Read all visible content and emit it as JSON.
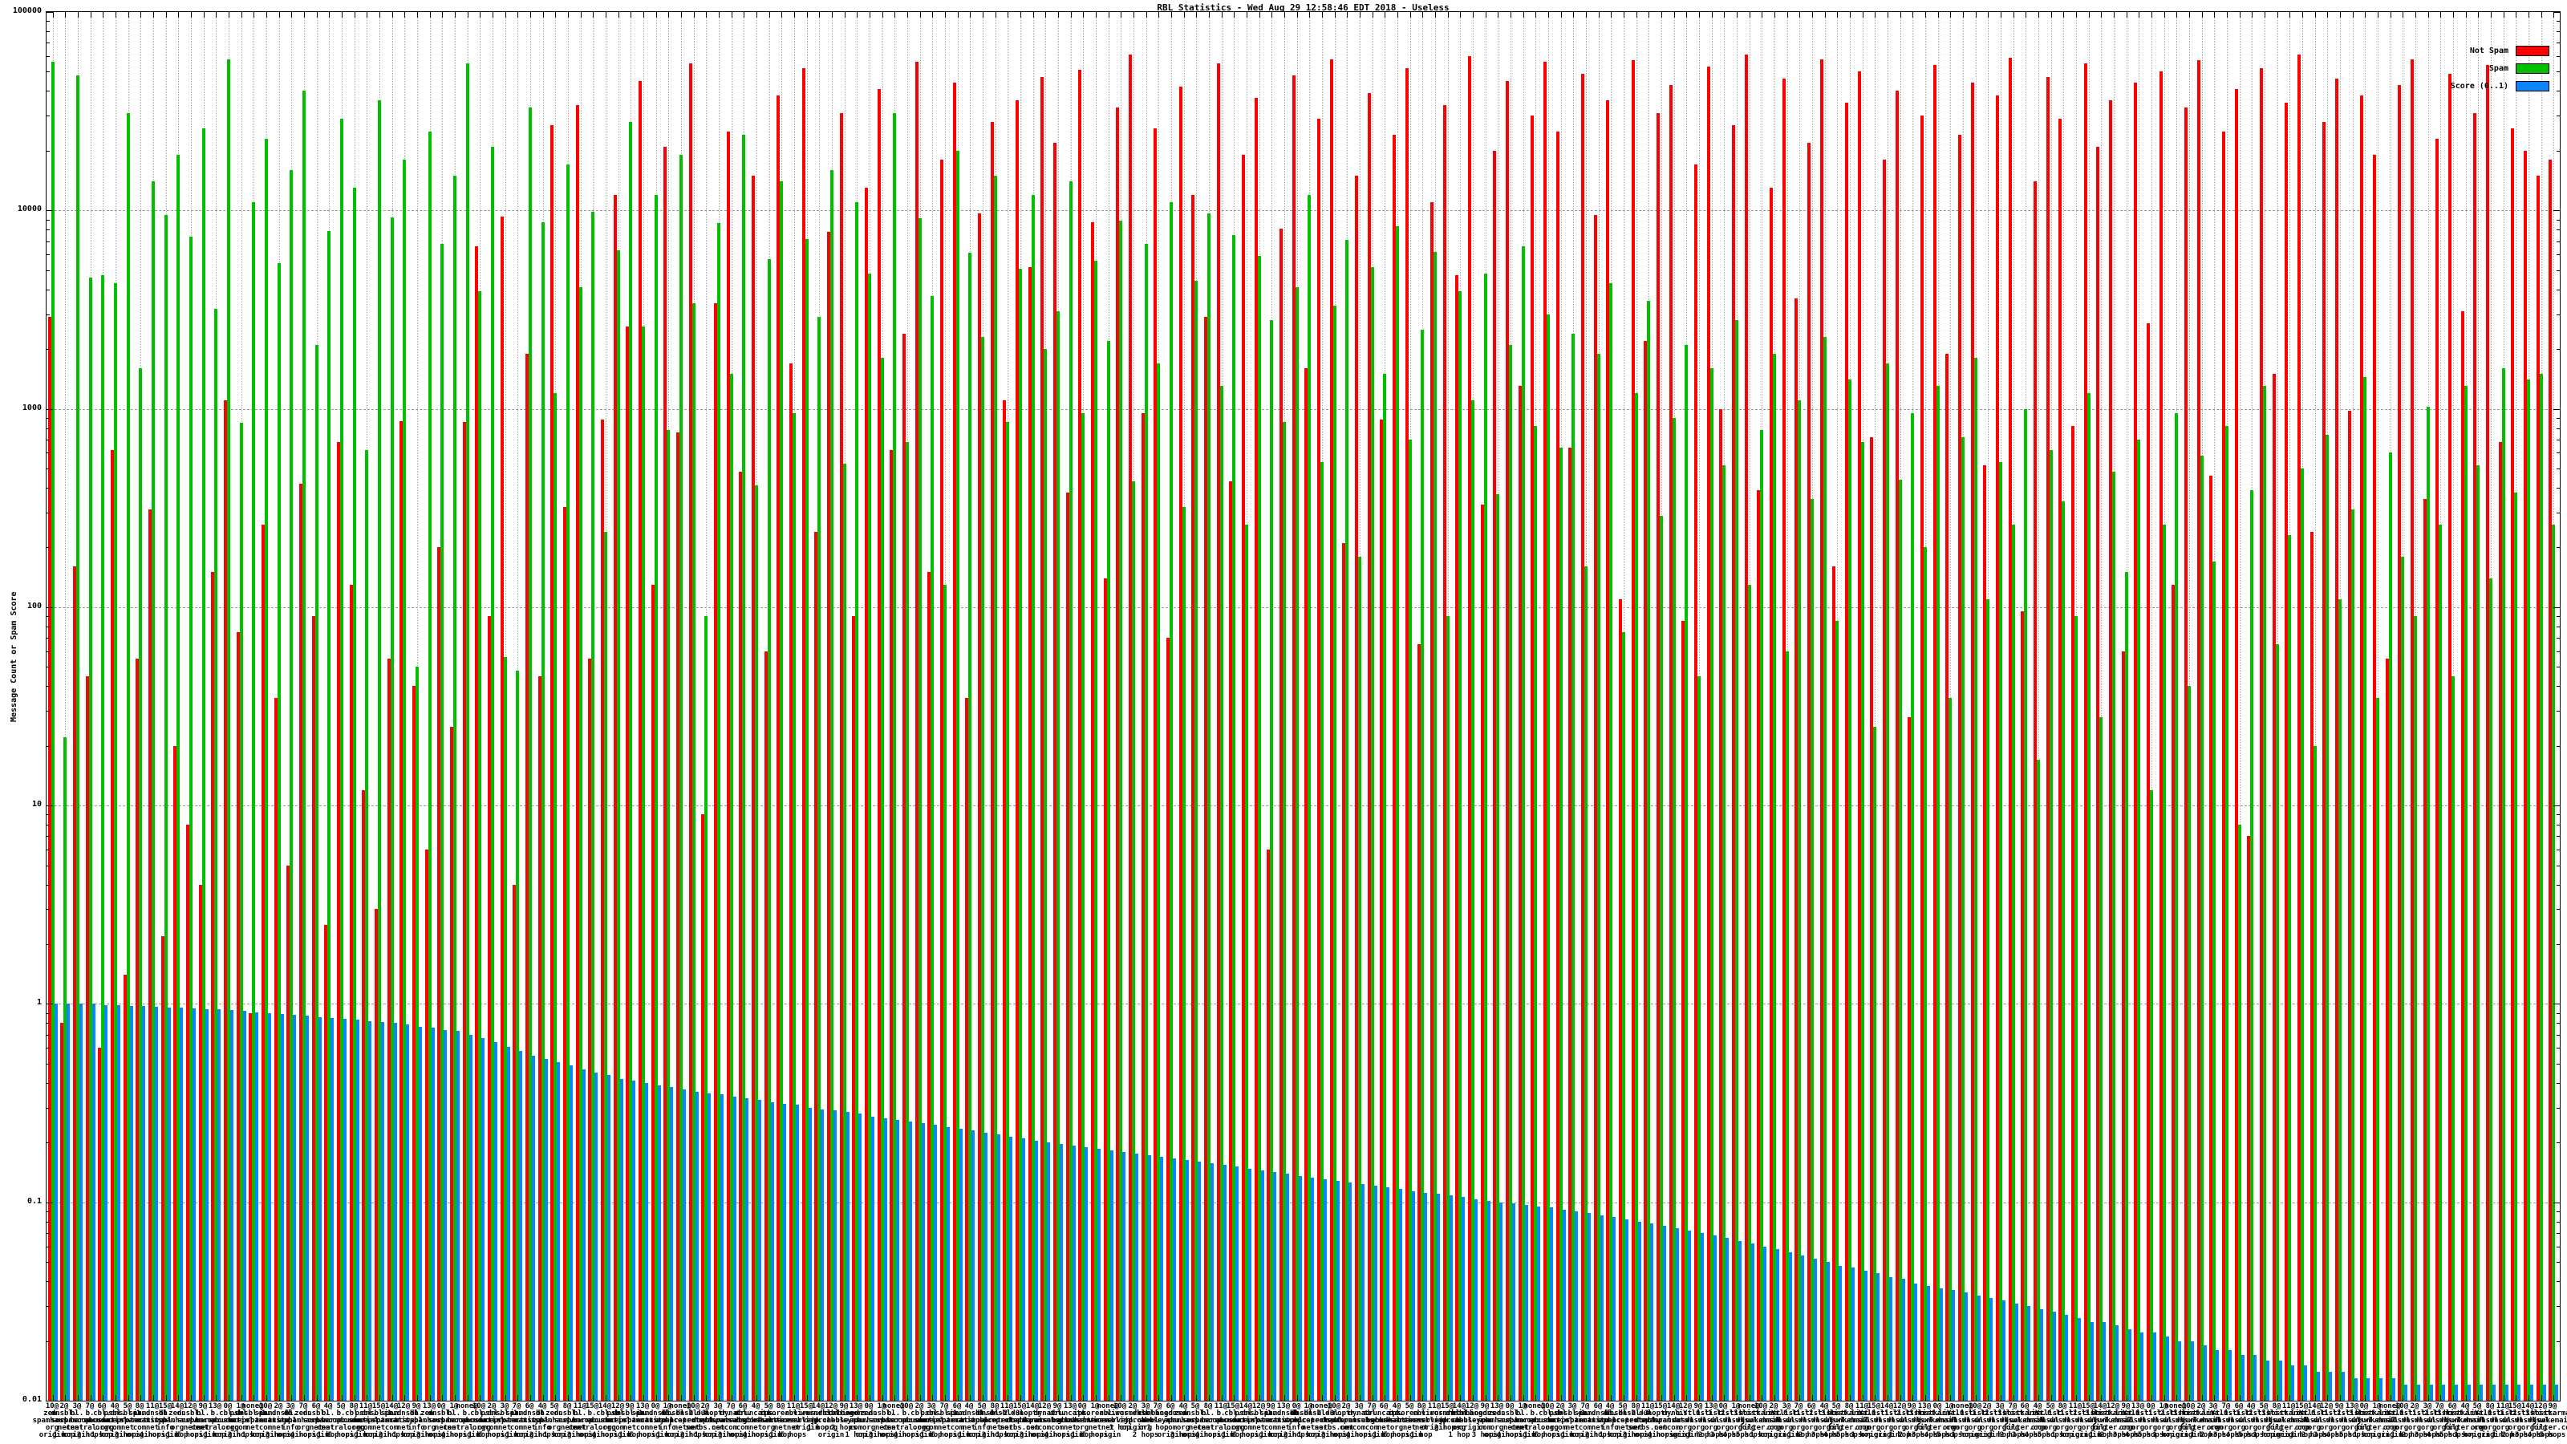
{
  "page": {
    "title": "RBL Statistics - Wed Aug 29 12:58:46 EDT 2018 - Useless"
  },
  "chart_data": {
    "type": "bar",
    "title": "RBL Statistics - Wed Aug 29 12:58:46 EDT 2018 - Useless",
    "xlabel": "",
    "ylabel": "Message Count or Spam Score",
    "y_scale": "log",
    "ylim": [
      0.01,
      100000
    ],
    "y_ticks": [
      "100000",
      "10000",
      "1000",
      "100",
      "10",
      "1",
      "0.1",
      "0.01"
    ],
    "grid": true,
    "legend_position": "top-right",
    "background": "#ffffff",
    "grid_color": "#9a9a9a",
    "categories": [
      "10@\nzen.\nspamhaus.\norg\norigin",
      "2@\ndnsbl.\nsorbs.\nnet\n1 hop",
      "3@\nbl.\nspamcop.\nnet\norigin",
      "7@\nb.\nbarracuda\ncentral.org\n2 hops",
      "6@\ncbl.\nabuseat.\norg\n1 hop",
      "4@\npsbl.\nsurriel.\ncom\norigin",
      "5@\ndnsbl-1.\nuceprotect.\nnet\n3 hops",
      "8@\nspam.\nspamrats.\ncom\norigin",
      "11@\nix.dnsbl.\nmanitu.\nnet\n4 hops",
      "15@\ndb.\nwpbl.\ninfo\norigin",
      "14@\nzen.\nspamhaus.\norg\n1 hop",
      "12@\ndnsbl.\nsorbs.\nnet\n5 hops",
      "9@\nbl.\nspamcop.\nnet\norigin",
      "13@\nb.\nbarracuda\ncentral.org\n1 hop",
      "0@\ncbl.\nabuseat.\norg\norigin",
      "1@\npsbl.\nsurriel.\ncom\n2 hops",
      "none@\ndnsbl-1.\nuceprotect.\nnet\n1 hop",
      "10@\nspam.\nspamrats.\ncom\norigin",
      "2@\nix.dnsbl.\nmanitu.\nnet\n3 hops",
      "3@\ndb.\nwpbl.\ninfo\norigin",
      "7@\nzen.\nspamhaus.\norg\n4 hops",
      "6@\ndnsbl.\nsorbs.\nnet\norigin",
      "4@\nbl.\nspamcop.\nnet\n1 hop",
      "5@\nb.\nbarracuda\ncentral.org\n5 hops",
      "8@\ncbl.\nabuseat.\norg\norigin",
      "11@\npsbl.\nsurriel.\ncom\n1 hop",
      "15@\ndnsbl-1.\nuceprotect.\nnet\norigin",
      "14@\nspam.\nspamrats.\ncom\n2 hops",
      "12@\nix.dnsbl.\nmanitu.\nnet\n1 hop",
      "9@\ndb.\nwpbl.\ninfo\norigin",
      "13@\nzen.\nspamhaus.\norg\n3 hops",
      "0@\ndnsbl.\nsorbs.\nnet\norigin",
      "1@\nbl.\nspamcop.\nnet\n4 hops",
      "none@\nb.\nbarracuda\ncentral.org\norigin",
      "10@\ncbl.\nabuseat.\norg\n1 hop",
      "2@\npsbl.\nsurriel.\ncom\n5 hops",
      "3@\ndnsbl-1.\nuceprotect.\nnet\norigin",
      "7@\nspam.\nspamrats.\ncom\n1 hop",
      "6@\nix.dnsbl.\nmanitu.\nnet\norigin",
      "4@\ndb.\nwpbl.\ninfo\n2 hops",
      "5@\nzen.\nspamhaus.\norg\n1 hop",
      "8@\ndnsbl.\nsorbs.\nnet\norigin",
      "11@\nbl.\nspamcop.\nnet\n3 hops",
      "15@\nb.\nbarracuda\ncentral.org\norigin",
      "14@\ncbl.\nabuseat.\norg\n4 hops",
      "12@\npsbl.\nsurriel.\ncom\norigin",
      "9@\ndnsbl-1.\nuceprotect.\nnet\n1 hop",
      "13@\nspam.\nspamrats.\ncom\n5 hops",
      "0@\nix.dnsbl.\nmanitu.\nnet\norigin",
      "1@\ndb.\nwpbl.\ninfo\n1 hop",
      "none@\ndnsbl-2.\nuceprotect.\nnet\norigin",
      "10@\ndnsbl-3.\nuceprotect.\nnet\n2 hops",
      "2@\ndul.\ndnsbl.\nsorbs.net\n1 hop",
      "3@\nnoptr.\nspamrats.\ncom\norigin",
      "7@\ndyna.\nspamrats.\ncom\n3 hops",
      "6@\nubl.\nunsubscore.\ncom\norigin",
      "4@\ntruncate.\ngbudb.\nnet\n4 hops",
      "5@\nips.\nbackscatterer.\norg\norigin",
      "8@\nkorea.\nservices.\nnet\n1 hop",
      "11@\nrbl.\ninterserver.\nnet\n5 hops",
      "15@\nvirus.\nrbl.jp\norigin",
      "14@\nwormrbl.\nimp.ch\n1 hop",
      "12@\ndnsbl.\ndronebl.\norg\norigin",
      "9@\ncombined.\nabuse.ch\n2 hops",
      "13@\nbogons.\ncymru.\ncom\n1 hop",
      "0@\nzen.\nspamhaus.\norg\norigin",
      "1@\ndnsbl.\nsorbs.\nnet\n3 hops",
      "none@\nbl.\nspamcop.\nnet\norigin",
      "10@\nb.\nbarracuda\ncentral.org\n4 hops",
      "2@\ncbl.\nabuseat.\norg\norigin",
      "3@\npsbl.\nsurriel.\ncom\n1 hop",
      "7@\ndnsbl-1.\nuceprotect.\nnet\n5 hops",
      "6@\nspam.\nspamrats.\ncom\norigin",
      "4@\nix.dnsbl.\nmanitu.\nnet\n1 hop",
      "5@\ndb.\nwpbl.\ninfo\norigin",
      "8@\ndnsbl-2.\nuceprotect.\nnet\n2 hops",
      "11@\ndnsbl-3.\nuceprotect.\nnet\n1 hop",
      "15@\ndul.\ndnsbl.\nsorbs.net\norigin",
      "14@\nnoptr.\nspamrats.\ncom\n3 hops",
      "12@\ndyna.\nspamrats.\ncom\norigin",
      "9@\nubl.\nunsubscore.\ncom\n4 hops",
      "13@\ntruncate.\ngbudb.\nnet\norigin",
      "0@\nips.\nbackscatterer.\norg\n1 hop",
      "1@\nkorea.\nservices.\nnet\n5 hops",
      "none@\nrbl.\ninterserver.\nnet\norigin",
      "10@\nvirus.\nrbl.jp\n1 hop",
      "2@\nwormrbl.\nimp.ch\norigin",
      "3@\ndnsbl.\ndronebl.\norg\n2 hops",
      "7@\ncombined.\nabuse.ch\n1 hop",
      "6@\nbogons.\ncymru.\ncom\norigin",
      "4@\nzen.\nspamhaus.\norg\n3 hops",
      "5@\ndnsbl.\nsorbs.\nnet\norigin",
      "8@\nbl.\nspamcop.\nnet\n4 hops",
      "11@\nb.\nbarracuda\ncentral.org\norigin",
      "15@\ncbl.\nabuseat.\norg\n1 hop",
      "14@\npsbl.\nsurriel.\ncom\n5 hops",
      "12@\ndnsbl-1.\nuceprotect.\nnet\norigin",
      "9@\nspam.\nspamrats.\ncom\n1 hop",
      "13@\nix.dnsbl.\nmanitu.\nnet\norigin",
      "0@\ndb.\nwpbl.\ninfo\n2 hops",
      "1@\ndnsbl-2.\nuceprotect.\nnet\n1 hop",
      "none@\ndnsbl-3.\nuceprotect.\nnet\norigin",
      "10@\ndul.\ndnsbl.\nsorbs.net\n3 hops",
      "2@\nnoptr.\nspamrats.\ncom\norigin",
      "3@\ndyna.\nspamrats.\ncom\n4 hops",
      "7@\nubl.\nunsubscore.\ncom\norigin",
      "6@\ntruncate.\ngbudb.\nnet\n1 hop",
      "4@\nips.\nbackscatterer.\norg\n5 hops",
      "5@\nkorea.\nservices.\nnet\norigin",
      "8@\nrbl.\ninterserver.\nnet\n1 hop",
      "11@\nvirus.\nrbl.jp\norigin",
      "15@\nwormrbl.\nimp.ch\n2 hops",
      "14@\ndnsbl.\ndronebl.\norg\n1 hop",
      "12@\ncombined.\nabuse.ch\norigin",
      "9@\nbogons.\ncymru.\ncom\n3 hops",
      "13@\nzen.\nspamhaus.\norg\norigin",
      "0@\ndnsbl.\nsorbs.\nnet\n4 hops",
      "1@\nbl.\nspamcop.\nnet\norigin",
      "none@\nb.\nbarracuda\ncentral.org\n1 hop",
      "10@\ncbl.\nabuseat.\norg\n5 hops",
      "2@\npsbl.\nsurriel.\ncom\norigin",
      "3@\ndnsbl-1.\nuceprotect.\nnet\n1 hop",
      "7@\nspam.\nspamrats.\ncom\norigin",
      "6@\nix.dnsbl.\nmanitu.\nnet\n2 hops",
      "4@\ndb.\nwpbl.\ninfo\n1 hop",
      "5@\ndnsbl-2.\nuceprotect.\nnet\norigin",
      "8@\ndnsbl-3.\nuceprotect.\nnet\n3 hops",
      "11@\ndul.\ndnsbl.\nsorbs.net\norigin",
      "15@\nnoptr.\nspamrats.\ncom\n4 hops",
      "14@\ndyna.\nspamrats.\ncom\norigin",
      "12@\nlist.\ndnswl.\norg\norigin",
      "9@\nY.list.\ndnswl.\norg\n1 hop",
      "13@\n0.list.\ndnswl.\norg\n2 hops",
      "0@\n1.list.\ndnswl.\norg\n3 hops",
      "1@\n2.list.\ndnswl.\norg\n4 hops",
      "none@\n3.list.\ndnswl.\norg\n5 hops",
      "10@\nhostkarma.\njunkemail\nfilter.com\n1 hop",
      "2@\nlist.\ndnswl.\norg\norigin",
      "3@\nY.list.\ndnswl.\norg\norigin",
      "7@\n0.list.\ndnswl.\norg\n1 hop",
      "6@\n1.list.\ndnswl.\norg\n2 hops",
      "4@\n2.list.\ndnswl.\norg\n3 hops",
      "5@\n3.list.\ndnswl.\norg\n4 hops",
      "8@\nhostkarma.\njunkemail\nfilter.com\n5 hops",
      "11@\nlist.\ndnswl.\norg\n1 hop",
      "15@\nY.list.\ndnswl.\norg\norigin",
      "14@\n0.list.\ndnswl.\norg\norigin",
      "12@\n1.list.\ndnswl.\norg\n1 hop",
      "9@\n2.list.\ndnswl.\norg\n2 hops",
      "13@\n3.list.\ndnswl.\norg\n3 hops",
      "0@\nhostkarma.\njunkemail\nfilter.com\n4 hops",
      "1@\nlist.\ndnswl.\norg\n5 hops",
      "none@\nY.list.\ndnswl.\norg\n1 hop",
      "10@\n0.list.\ndnswl.\norg\norigin",
      "2@\n1.list.\ndnswl.\norg\norigin",
      "3@\n2.list.\ndnswl.\norg\n1 hop",
      "7@\n3.list.\ndnswl.\norg\n2 hops",
      "6@\nhostkarma.\njunkemail\nfilter.com\n3 hops",
      "4@\nlist.\ndnswl.\norg\n4 hops",
      "5@\nY.list.\ndnswl.\norg\n5 hops",
      "8@\n0.list.\ndnswl.\norg\n1 hop",
      "11@\n1.list.\ndnswl.\norg\norigin",
      "15@\n2.list.\ndnswl.\norg\norigin",
      "14@\n3.list.\ndnswl.\norg\n1 hop",
      "12@\nhostkarma.\njunkemail\nfilter.com\n2 hops",
      "9@\nlist.\ndnswl.\norg\n3 hops",
      "13@\nY.list.\ndnswl.\norg\n4 hops",
      "0@\n0.list.\ndnswl.\norg\n5 hops",
      "1@\n1.list.\ndnswl.\norg\n1 hop",
      "none@\n2.list.\ndnswl.\norg\norigin",
      "10@\n3.list.\ndnswl.\norg\norigin",
      "2@\nhostkarma.\njunkemail\nfilter.com\n1 hop",
      "3@\nlist.\ndnswl.\norg\n2 hops",
      "7@\nY.list.\ndnswl.\norg\n3 hops",
      "6@\n0.list.\ndnswl.\norg\n4 hops",
      "4@\n1.list.\ndnswl.\norg\n5 hops",
      "5@\n2.list.\ndnswl.\norg\n1 hop",
      "8@\n3.list.\ndnswl.\norg\norigin",
      "11@\nhostkarma.\njunkemail\nfilter.com\norigin",
      "15@\nlist.\ndnswl.\norg\n1 hop",
      "14@\nY.list.\ndnswl.\norg\n2 hops",
      "12@\n0.list.\ndnswl.\norg\n3 hops",
      "9@\n1.list.\ndnswl.\norg\n4 hops",
      "13@\n2.list.\ndnswl.\norg\n5 hops",
      "0@\n3.list.\ndnswl.\norg\n1 hop",
      "1@\nhostkarma.\njunkemail\nfilter.com\norigin",
      "none@\nlist.\ndnswl.\norg\norigin",
      "10@\nY.list.\ndnswl.\norg\n1 hop",
      "2@\n0.list.\ndnswl.\norg\n2 hops",
      "3@\n1.list.\ndnswl.\norg\n3 hops",
      "7@\n2.list.\ndnswl.\norg\n4 hops",
      "6@\n3.list.\ndnswl.\norg\n5 hops",
      "4@\nhostkarma.\njunkemail\nfilter.com\n1 hop",
      "5@\nlist.\ndnswl.\norg\norigin",
      "8@\nY.list.\ndnswl.\norg\norigin",
      "11@\n0.list.\ndnswl.\norg\n1 hop",
      "15@\n1.list.\ndnswl.\norg\n2 hops",
      "14@\n2.list.\ndnswl.\norg\n3 hops",
      "12@\n3.list.\ndnswl.\norg\n4 hops",
      "9@\nhostkarma.\njunkemail\nfilter.com\n5 hops"
    ],
    "series": [
      {
        "name": "Not Spam",
        "color": "#ff0000",
        "values": [
          2900,
          0.8,
          160,
          45,
          0.6,
          620,
          1.4,
          55,
          310,
          2.2,
          20,
          8,
          4,
          150,
          1100,
          75,
          0.9,
          260,
          35,
          5,
          420,
          90,
          2.5,
          680,
          130,
          12,
          3,
          55,
          870,
          40,
          6,
          200,
          25,
          860,
          6600,
          90,
          9300,
          4,
          1900,
          45,
          27000,
          320,
          34000,
          55,
          880,
          12000,
          2600,
          45000,
          130,
          21000,
          760,
          55000,
          9,
          3400,
          25000,
          480,
          15000,
          60,
          38000,
          1700,
          52000,
          240,
          7800,
          31000,
          90,
          13000,
          41000,
          620,
          2400,
          56000,
          150,
          18000,
          44000,
          35,
          9700,
          28000,
          1100,
          36000,
          5200,
          47000,
          22000,
          380,
          51000,
          8700,
          140,
          33000,
          61000,
          950,
          26000,
          70,
          42000,
          12000,
          2900,
          55000,
          430,
          19000,
          37000,
          6,
          8100,
          48000,
          1600,
          29000,
          58000,
          210,
          15000,
          39000,
          880,
          24000,
          52000,
          65,
          11000,
          34000,
          4700,
          60000,
          330,
          20000,
          45000,
          1300,
          30000,
          56000,
          25000,
          640,
          49000,
          9500,
          36000,
          110,
          57000,
          2200,
          31000,
          43000,
          85,
          17000,
          53000,
          1000,
          27000,
          61000,
          390,
          13000,
          46000,
          3600,
          22000,
          58000,
          160,
          35000,
          50000,
          720,
          18000,
          40000,
          28,
          30000,
          54000,
          1900,
          24000,
          44000,
          520,
          38000,
          59000,
          95,
          14000,
          47000,
          29000,
          820,
          55000,
          21000,
          36000,
          60,
          44000,
          2700,
          50000,
          130,
          33000,
          57000,
          460,
          25000,
          41000,
          7,
          52000,
          1500,
          35000,
          61000,
          240,
          28000,
          46000,
          980,
          38000,
          19000,
          55,
          43000,
          58000,
          350,
          23000,
          49000,
          3100,
          31000,
          54000,
          680,
          26000,
          20000,
          15000,
          18000
        ]
      },
      {
        "name": "Spam",
        "color": "#00c000",
        "values": [
          56000,
          22,
          48000,
          4600,
          4700,
          4300,
          31000,
          1600,
          14000,
          9500,
          19000,
          7400,
          26000,
          3200,
          58000,
          850,
          11000,
          23000,
          5400,
          16000,
          40000,
          2100,
          7900,
          29000,
          13000,
          620,
          36000,
          9200,
          18000,
          50,
          25000,
          6800,
          15000,
          55000,
          3900,
          21000,
          56,
          48,
          33000,
          8700,
          1200,
          17000,
          4100,
          9800,
          240,
          6300,
          28000,
          2600,
          12000,
          780,
          19000,
          3400,
          90,
          8600,
          1500,
          24000,
          410,
          5700,
          14000,
          950,
          7200,
          2900,
          16000,
          530,
          11000,
          4800,
          1800,
          31000,
          680,
          9100,
          3700,
          130,
          20000,
          6100,
          2300,
          15000,
          860,
          5100,
          12000,
          2000,
          3100,
          14000,
          950,
          5600,
          2200,
          8900,
          430,
          6800,
          1700,
          11000,
          320,
          4400,
          9700,
          1300,
          7500,
          260,
          5900,
          2800,
          860,
          4100,
          12000,
          540,
          3300,
          7100,
          180,
          5200,
          1500,
          8300,
          700,
          2500,
          6200,
          90,
          3900,
          1100,
          4800,
          370,
          2100,
          6600,
          820,
          3000,
          640,
          2400,
          160,
          1900,
          4300,
          75,
          1200,
          3500,
          290,
          900,
          2100,
          45,
          1600,
          520,
          2800,
          130,
          780,
          1900,
          60,
          1100,
          350,
          2300,
          85,
          1400,
          680,
          25,
          1700,
          440,
          950,
          200,
          1300,
          35,
          720,
          1800,
          110,
          540,
          260,
          1000,
          17,
          620,
          340,
          90,
          1200,
          28,
          480,
          150,
          700,
          12,
          260,
          950,
          40,
          580,
          170,
          820,
          8,
          390,
          1300,
          65,
          230,
          500,
          20,
          740,
          110,
          310,
          1450,
          35,
          600,
          180,
          90,
          1020,
          260,
          45,
          1300,
          520,
          140,
          1600,
          380,
          1400,
          1500,
          260
        ]
      },
      {
        "name": "Score (0..1)",
        "color": "#0a85ff",
        "values": [
          1.0,
          1.0,
          1.0,
          1.0,
          0.99,
          0.99,
          0.98,
          0.98,
          0.97,
          0.96,
          0.96,
          0.95,
          0.94,
          0.94,
          0.93,
          0.92,
          0.91,
          0.9,
          0.89,
          0.88,
          0.87,
          0.86,
          0.85,
          0.84,
          0.83,
          0.82,
          0.81,
          0.8,
          0.79,
          0.77,
          0.76,
          0.74,
          0.73,
          0.7,
          0.67,
          0.64,
          0.61,
          0.58,
          0.55,
          0.53,
          0.51,
          0.49,
          0.47,
          0.45,
          0.44,
          0.42,
          0.41,
          0.4,
          0.39,
          0.38,
          0.37,
          0.36,
          0.355,
          0.35,
          0.34,
          0.335,
          0.33,
          0.32,
          0.315,
          0.31,
          0.3,
          0.295,
          0.29,
          0.285,
          0.28,
          0.27,
          0.265,
          0.26,
          0.255,
          0.25,
          0.245,
          0.24,
          0.235,
          0.23,
          0.225,
          0.22,
          0.215,
          0.21,
          0.205,
          0.2,
          0.197,
          0.193,
          0.19,
          0.186,
          0.183,
          0.18,
          0.176,
          0.173,
          0.17,
          0.167,
          0.163,
          0.16,
          0.157,
          0.154,
          0.151,
          0.148,
          0.145,
          0.142,
          0.139,
          0.136,
          0.133,
          0.131,
          0.128,
          0.126,
          0.123,
          0.121,
          0.119,
          0.117,
          0.114,
          0.112,
          0.11,
          0.108,
          0.106,
          0.104,
          0.102,
          0.1,
          0.099,
          0.097,
          0.095,
          0.094,
          0.092,
          0.09,
          0.088,
          0.086,
          0.084,
          0.082,
          0.08,
          0.078,
          0.076,
          0.074,
          0.072,
          0.07,
          0.068,
          0.066,
          0.064,
          0.062,
          0.06,
          0.058,
          0.056,
          0.054,
          0.052,
          0.05,
          0.048,
          0.047,
          0.045,
          0.044,
          0.042,
          0.041,
          0.039,
          0.038,
          0.037,
          0.036,
          0.035,
          0.034,
          0.033,
          0.032,
          0.031,
          0.03,
          0.029,
          0.028,
          0.027,
          0.026,
          0.025,
          0.025,
          0.024,
          0.023,
          0.022,
          0.022,
          0.021,
          0.02,
          0.02,
          0.019,
          0.018,
          0.018,
          0.017,
          0.017,
          0.016,
          0.016,
          0.015,
          0.015,
          0.014,
          0.014,
          0.014,
          0.013,
          0.013,
          0.013,
          0.013,
          0.012,
          0.012,
          0.012,
          0.012,
          0.012,
          0.012,
          0.012,
          0.012,
          0.012,
          0.012,
          0.012,
          0.012,
          0.012
        ]
      }
    ]
  }
}
